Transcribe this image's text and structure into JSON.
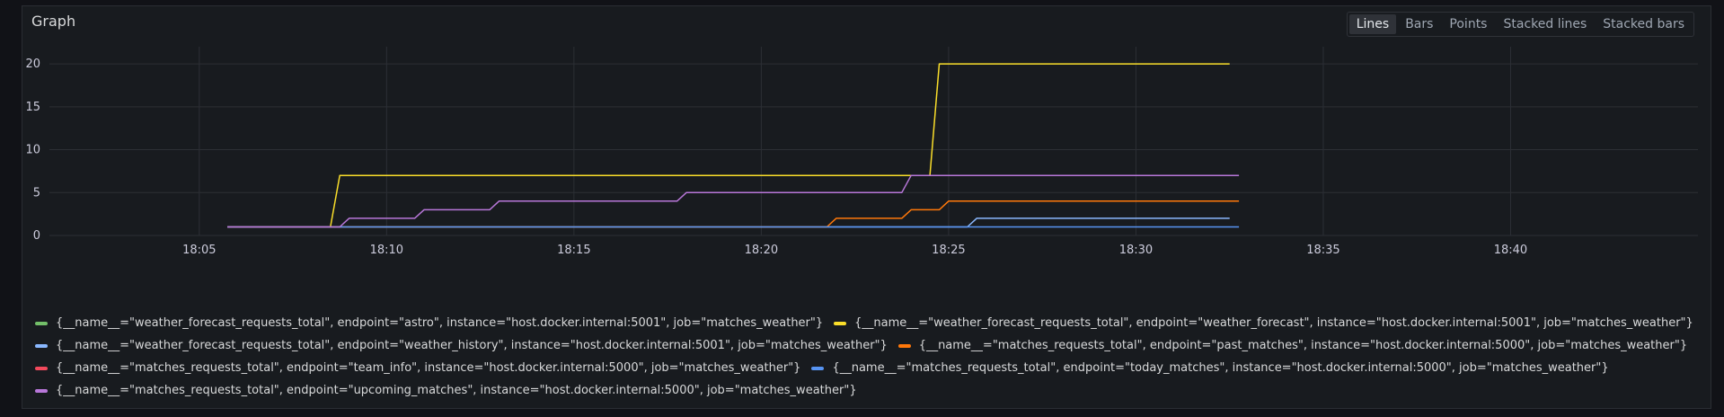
{
  "panel": {
    "title": "Graph"
  },
  "view_options": [
    {
      "label": "Lines",
      "active": true
    },
    {
      "label": "Bars",
      "active": false
    },
    {
      "label": "Points",
      "active": false
    },
    {
      "label": "Stacked lines",
      "active": false
    },
    {
      "label": "Stacked bars",
      "active": false
    }
  ],
  "chart_data": {
    "type": "line",
    "title": "Graph",
    "xlabel": "",
    "ylabel": "",
    "x_range": [
      "18:01",
      "18:45"
    ],
    "ylim": [
      0,
      22
    ],
    "x_ticks": [
      "18:05",
      "18:10",
      "18:15",
      "18:20",
      "18:25",
      "18:30",
      "18:35",
      "18:40"
    ],
    "y_ticks": [
      0,
      5,
      10,
      15,
      20
    ],
    "grid": true,
    "legend_position": "bottom",
    "series": [
      {
        "name": "{__name__=\"weather_forecast_requests_total\", endpoint=\"astro\", instance=\"host.docker.internal:5001\", job=\"matches_weather\"}",
        "color": "#73bf69",
        "points": []
      },
      {
        "name": "{__name__=\"weather_forecast_requests_total\", endpoint=\"weather_forecast\", instance=\"host.docker.internal:5001\", job=\"matches_weather\"}",
        "color": "#fade2a",
        "points": [
          [
            "18:05:45",
            1
          ],
          [
            "18:08:30",
            1
          ],
          [
            "18:08:45",
            7
          ],
          [
            "18:24:15",
            7
          ],
          [
            "18:24:30",
            7
          ],
          [
            "18:24:45",
            20
          ],
          [
            "18:32:30",
            20
          ]
        ]
      },
      {
        "name": "{__name__=\"weather_forecast_requests_total\", endpoint=\"weather_history\", instance=\"host.docker.internal:5001\", job=\"matches_weather\"}",
        "color": "#8ab8ff",
        "points": [
          [
            "18:05:45",
            1
          ],
          [
            "18:25:30",
            1
          ],
          [
            "18:25:45",
            2
          ],
          [
            "18:32:30",
            2
          ]
        ]
      },
      {
        "name": "{__name__=\"matches_requests_total\", endpoint=\"past_matches\", instance=\"host.docker.internal:5000\", job=\"matches_weather\"}",
        "color": "#ff780a",
        "points": [
          [
            "18:05:45",
            1
          ],
          [
            "18:21:45",
            1
          ],
          [
            "18:22:00",
            2
          ],
          [
            "18:23:45",
            2
          ],
          [
            "18:24:00",
            3
          ],
          [
            "18:24:45",
            3
          ],
          [
            "18:25:00",
            4
          ],
          [
            "18:32:45",
            4
          ]
        ]
      },
      {
        "name": "{__name__=\"matches_requests_total\", endpoint=\"team_info\", instance=\"host.docker.internal:5000\", job=\"matches_weather\"}",
        "color": "#f2495c",
        "points": []
      },
      {
        "name": "{__name__=\"matches_requests_total\", endpoint=\"today_matches\", instance=\"host.docker.internal:5000\", job=\"matches_weather\"}",
        "color": "#5794f2",
        "points": [
          [
            "18:05:45",
            1
          ],
          [
            "18:32:45",
            1
          ]
        ]
      },
      {
        "name": "{__name__=\"matches_requests_total\", endpoint=\"upcoming_matches\", instance=\"host.docker.internal:5000\", job=\"matches_weather\"}",
        "color": "#b877d9",
        "points": [
          [
            "18:05:45",
            1
          ],
          [
            "18:08:45",
            1
          ],
          [
            "18:09:00",
            2
          ],
          [
            "18:10:45",
            2
          ],
          [
            "18:11:00",
            3
          ],
          [
            "18:12:45",
            3
          ],
          [
            "18:13:00",
            4
          ],
          [
            "18:17:45",
            4
          ],
          [
            "18:18:00",
            5
          ],
          [
            "18:23:45",
            5
          ],
          [
            "18:24:00",
            7
          ],
          [
            "18:32:45",
            7
          ]
        ]
      }
    ]
  }
}
